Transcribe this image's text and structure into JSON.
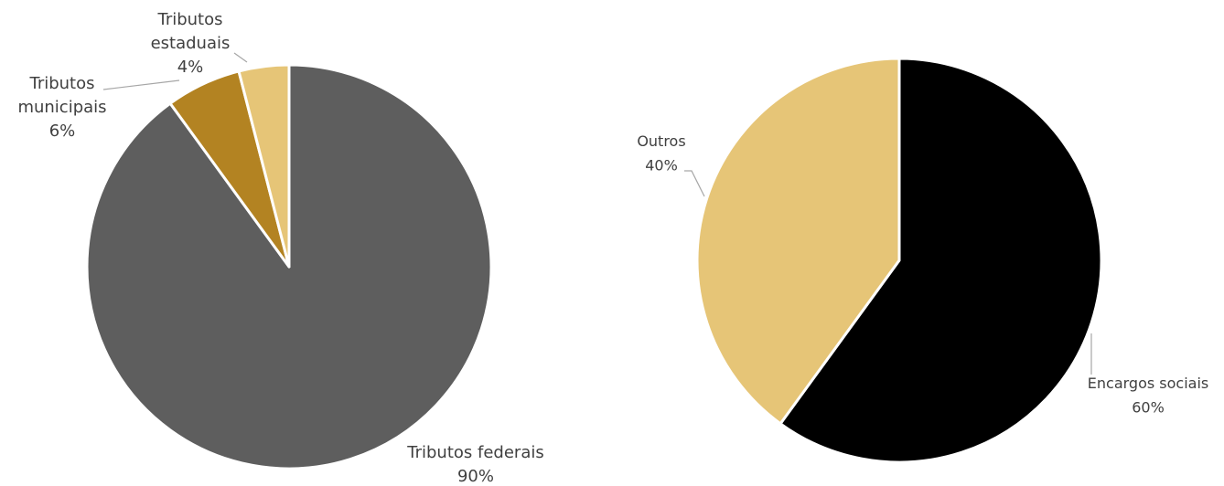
{
  "chart_data": [
    {
      "type": "pie",
      "categories": [
        "Tributos federais",
        "Tributos municipais",
        "Tributos estaduais"
      ],
      "values": [
        90,
        6,
        4
      ],
      "value_labels": [
        "90%",
        "6%",
        "4%"
      ],
      "colors": [
        "#5e5e5e",
        "#b38322",
        "#e6c577"
      ]
    },
    {
      "type": "pie",
      "categories": [
        "Encargos sociais",
        "Outros"
      ],
      "values": [
        60,
        40
      ],
      "value_labels": [
        "60%",
        "40%"
      ],
      "colors": [
        "#000000",
        "#e6c577"
      ]
    }
  ]
}
